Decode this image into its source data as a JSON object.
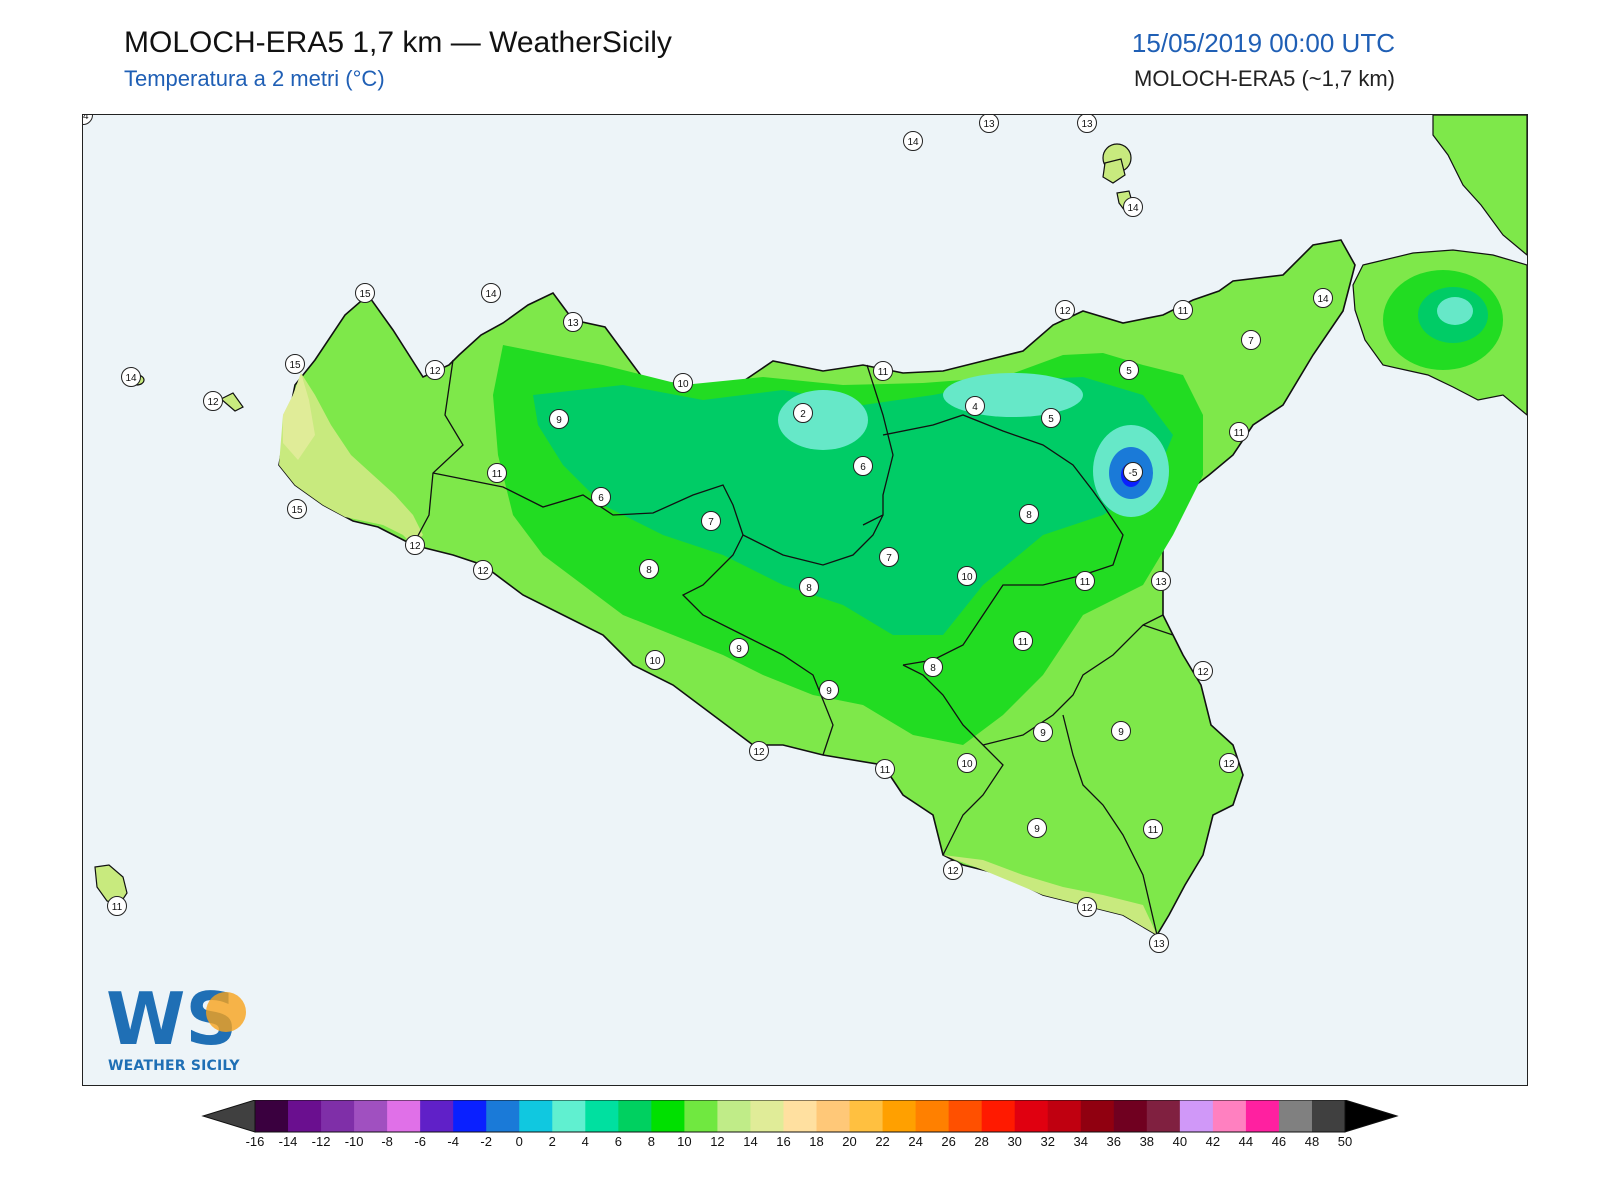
{
  "header": {
    "title": "MOLOCH-ERA5 1,7 km — WeatherSicily",
    "subtitle": "Temperatura a 2 metri (°C)",
    "datetime": "15/05/2019 00:00 UTC",
    "model_note": "MOLOCH-ERA5 (~1,7 km)"
  },
  "logo": {
    "letters": "WS",
    "text": "WEATHER SICILY"
  },
  "colors": {
    "sea": "#edf4f8",
    "coast": "#111111",
    "warm_coast": "#c8ea7e",
    "lowland": "#7ee84a",
    "interior": "#22dc22",
    "cool": "#00cc66",
    "cold": "#66e8c8",
    "very_cold": "#2a8fe0"
  },
  "temperature_labels": [
    {
      "value": "14"
    },
    {
      "value": "13"
    },
    {
      "value": "13"
    },
    {
      "value": "14"
    },
    {
      "value": "15"
    },
    {
      "value": "14"
    },
    {
      "value": "13"
    },
    {
      "value": "12"
    },
    {
      "value": "11"
    },
    {
      "value": "14"
    },
    {
      "value": "14"
    },
    {
      "value": "15"
    },
    {
      "value": "12"
    },
    {
      "value": "10"
    },
    {
      "value": "11"
    },
    {
      "value": "5"
    },
    {
      "value": "7"
    },
    {
      "value": "9"
    },
    {
      "value": "2"
    },
    {
      "value": "4"
    },
    {
      "value": "5"
    },
    {
      "value": "12"
    },
    {
      "value": "-5"
    },
    {
      "value": "11"
    },
    {
      "value": "6"
    },
    {
      "value": "11"
    },
    {
      "value": "6"
    },
    {
      "value": "7"
    },
    {
      "value": "8"
    },
    {
      "value": "15"
    },
    {
      "value": "12"
    },
    {
      "value": "7"
    },
    {
      "value": "12"
    },
    {
      "value": "8"
    },
    {
      "value": "10"
    },
    {
      "value": "11"
    },
    {
      "value": "13"
    },
    {
      "value": "8"
    },
    {
      "value": "12"
    },
    {
      "value": "11"
    },
    {
      "value": "9"
    },
    {
      "value": "10"
    },
    {
      "value": "8"
    },
    {
      "value": "12"
    },
    {
      "value": "9"
    },
    {
      "value": "9"
    },
    {
      "value": "9"
    },
    {
      "value": "12"
    },
    {
      "value": "12"
    },
    {
      "value": "11"
    },
    {
      "value": "10"
    },
    {
      "value": "9"
    },
    {
      "value": "11"
    },
    {
      "value": "12"
    },
    {
      "value": "13"
    },
    {
      "value": "11"
    },
    {
      "value": "14"
    }
  ],
  "colorbar": {
    "ticks": [
      "-16",
      "-14",
      "-12",
      "-10",
      "-8",
      "-6",
      "-4",
      "-2",
      "0",
      "2",
      "4",
      "6",
      "8",
      "10",
      "12",
      "14",
      "16",
      "18",
      "20",
      "22",
      "24",
      "26",
      "28",
      "30",
      "32",
      "34",
      "36",
      "38",
      "40",
      "42",
      "44",
      "46",
      "48",
      "50"
    ],
    "colors": [
      "#3a003f",
      "#6a0f8f",
      "#7f2fa8",
      "#a050c0",
      "#e070e8",
      "#6020c8",
      "#0a20ff",
      "#1a7ad8",
      "#10c8e0",
      "#60f0d0",
      "#00e0a0",
      "#00d060",
      "#00e000",
      "#70e840",
      "#c0ec88",
      "#e0ec98",
      "#ffe0a0",
      "#ffc878",
      "#ffc040",
      "#ffa000",
      "#ff8000",
      "#ff5000",
      "#ff1a00",
      "#e00010",
      "#c00010",
      "#900010",
      "#700020",
      "#802040",
      "#d098f8",
      "#ff80c0",
      "#ff20a0",
      "#808080",
      "#404040"
    ],
    "under_color": "#404040",
    "over_color": "#000000"
  }
}
